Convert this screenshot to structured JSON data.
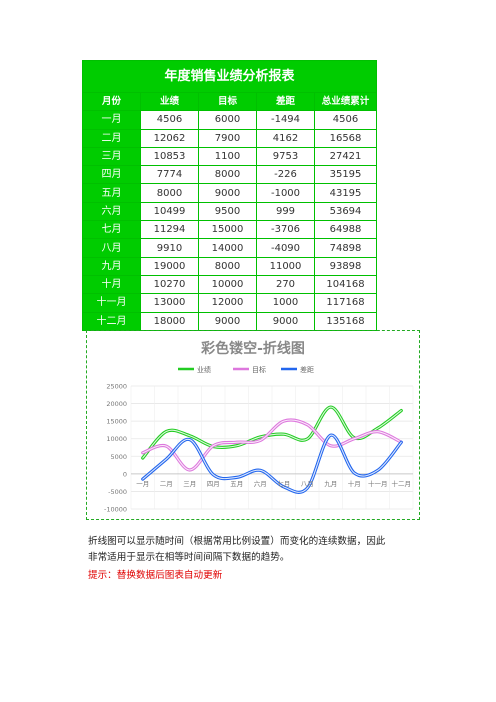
{
  "table": {
    "title": "年度销售业绩分析报表",
    "headers": [
      "月份",
      "业绩",
      "目标",
      "差距",
      "总业绩累计"
    ],
    "rows": [
      [
        "一月",
        "4506",
        "6000",
        "-1494",
        "4506"
      ],
      [
        "二月",
        "12062",
        "7900",
        "4162",
        "16568"
      ],
      [
        "三月",
        "10853",
        "1100",
        "9753",
        "27421"
      ],
      [
        "四月",
        "7774",
        "8000",
        "-226",
        "35195"
      ],
      [
        "五月",
        "8000",
        "9000",
        "-1000",
        "43195"
      ],
      [
        "六月",
        "10499",
        "9500",
        "999",
        "53694"
      ],
      [
        "七月",
        "11294",
        "15000",
        "-3706",
        "64988"
      ],
      [
        "八月",
        "9910",
        "14000",
        "-4090",
        "74898"
      ],
      [
        "九月",
        "19000",
        "8000",
        "11000",
        "93898"
      ],
      [
        "十月",
        "10270",
        "10000",
        "270",
        "104168"
      ],
      [
        "十一月",
        "13000",
        "12000",
        "1000",
        "117168"
      ],
      [
        "十二月",
        "18000",
        "9000",
        "9000",
        "135168"
      ]
    ]
  },
  "chart_data": {
    "type": "line",
    "title": "彩色镂空-折线图",
    "categories": [
      "一月",
      "二月",
      "三月",
      "四月",
      "五月",
      "六月",
      "七月",
      "八月",
      "九月",
      "十月",
      "十一月",
      "十二月"
    ],
    "series": [
      {
        "name": "业绩",
        "color": "#22cc22",
        "values": [
          4506,
          12062,
          10853,
          7774,
          8000,
          10499,
          11294,
          9910,
          19000,
          10270,
          13000,
          18000
        ]
      },
      {
        "name": "目标",
        "color": "#dd77dd",
        "values": [
          6000,
          7900,
          1100,
          8000,
          9000,
          9500,
          15000,
          14000,
          8000,
          10000,
          12000,
          9000
        ]
      },
      {
        "name": "差距",
        "color": "#2266ee",
        "values": [
          -1494,
          4162,
          9753,
          -226,
          -1000,
          999,
          -3706,
          -4090,
          11000,
          270,
          1000,
          9000
        ]
      }
    ],
    "yticks": [
      "25000",
      "20000",
      "15000",
      "10000",
      "5000",
      "0",
      "-5000",
      "-10000"
    ],
    "ylim": [
      -10000,
      25000
    ],
    "legend": "top",
    "grid": true,
    "smooth": true
  },
  "notes": {
    "description": "折线图可以显示随时间（根据常用比例设置）而变化的连续数据，因此非常适用于显示在相等时间间隔下数据的趋势。",
    "tip": "提示：替换数据后图表自动更新"
  }
}
